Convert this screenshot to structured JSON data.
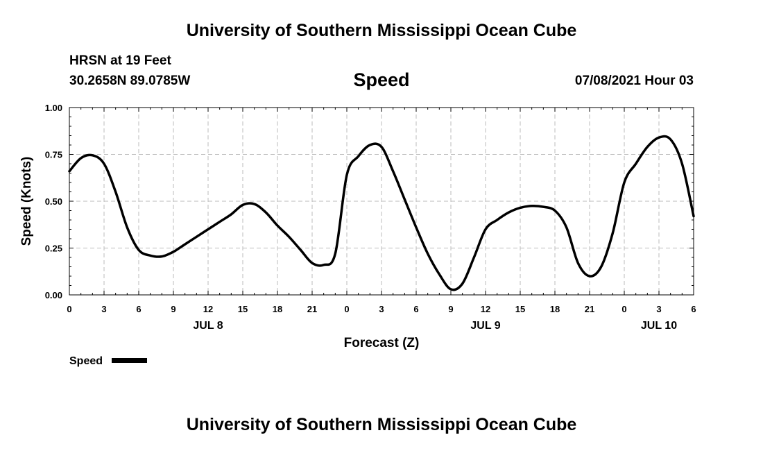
{
  "header": {
    "org_title": "University of Southern Mississippi Ocean Cube",
    "station": "HRSN at 19 Feet",
    "coords": "30.2658N  89.0785W",
    "datetime": "07/08/2021 Hour 03"
  },
  "footer": {
    "org_title": "University of Southern Mississippi Ocean Cube"
  },
  "colors": {
    "line": "#000000",
    "grid": "#bbbbbb",
    "background": "#ffffff"
  },
  "chart_data": {
    "type": "line",
    "title": "Speed",
    "xlabel": "Forecast (Z)",
    "ylabel": "Speed (Knots)",
    "ylim": [
      0,
      1
    ],
    "yticks": [
      "0.00",
      "0.25",
      "0.50",
      "0.75",
      "1.00"
    ],
    "xlim": [
      "2021-07-08T00:00Z",
      "2021-07-10T06:00Z"
    ],
    "xtick_labels": [
      "0",
      "3",
      "6",
      "9",
      "12",
      "15",
      "18",
      "21",
      "0",
      "3",
      "6",
      "9",
      "12",
      "15",
      "18",
      "21",
      "0",
      "3",
      "6"
    ],
    "date_labels": [
      {
        "label": "JUL 8",
        "at": "2021-07-08T12:00Z"
      },
      {
        "label": "JUL 9",
        "at": "2021-07-09T12:00Z"
      },
      {
        "label": "JUL 10",
        "at": "2021-07-10T03:00Z"
      }
    ],
    "grid": true,
    "legend": {
      "position": "bottom-left",
      "entries": [
        "Speed"
      ]
    },
    "series": [
      {
        "name": "Speed",
        "x": [
          "2021-07-08T00:00Z",
          "2021-07-08T01:00Z",
          "2021-07-08T02:00Z",
          "2021-07-08T03:00Z",
          "2021-07-08T04:00Z",
          "2021-07-08T05:00Z",
          "2021-07-08T06:00Z",
          "2021-07-08T07:00Z",
          "2021-07-08T08:00Z",
          "2021-07-08T09:00Z",
          "2021-07-08T10:00Z",
          "2021-07-08T11:00Z",
          "2021-07-08T12:00Z",
          "2021-07-08T13:00Z",
          "2021-07-08T14:00Z",
          "2021-07-08T15:00Z",
          "2021-07-08T16:00Z",
          "2021-07-08T17:00Z",
          "2021-07-08T18:00Z",
          "2021-07-08T19:00Z",
          "2021-07-08T20:00Z",
          "2021-07-08T21:00Z",
          "2021-07-08T22:00Z",
          "2021-07-08T23:00Z",
          "2021-07-09T00:00Z",
          "2021-07-09T01:00Z",
          "2021-07-09T02:00Z",
          "2021-07-09T03:00Z",
          "2021-07-09T04:00Z",
          "2021-07-09T05:00Z",
          "2021-07-09T06:00Z",
          "2021-07-09T07:00Z",
          "2021-07-09T08:00Z",
          "2021-07-09T09:00Z",
          "2021-07-09T10:00Z",
          "2021-07-09T11:00Z",
          "2021-07-09T12:00Z",
          "2021-07-09T13:00Z",
          "2021-07-09T14:00Z",
          "2021-07-09T15:00Z",
          "2021-07-09T16:00Z",
          "2021-07-09T17:00Z",
          "2021-07-09T18:00Z",
          "2021-07-09T19:00Z",
          "2021-07-09T20:00Z",
          "2021-07-09T21:00Z",
          "2021-07-09T22:00Z",
          "2021-07-09T23:00Z",
          "2021-07-10T00:00Z",
          "2021-07-10T01:00Z",
          "2021-07-10T02:00Z",
          "2021-07-10T03:00Z",
          "2021-07-10T04:00Z",
          "2021-07-10T05:00Z",
          "2021-07-10T06:00Z"
        ],
        "values": [
          0.66,
          0.73,
          0.745,
          0.7,
          0.55,
          0.36,
          0.24,
          0.21,
          0.205,
          0.23,
          0.27,
          0.31,
          0.35,
          0.39,
          0.43,
          0.48,
          0.485,
          0.44,
          0.37,
          0.31,
          0.24,
          0.17,
          0.16,
          0.22,
          0.64,
          0.74,
          0.8,
          0.79,
          0.66,
          0.51,
          0.36,
          0.22,
          0.11,
          0.03,
          0.06,
          0.2,
          0.35,
          0.4,
          0.44,
          0.465,
          0.475,
          0.47,
          0.45,
          0.36,
          0.17,
          0.1,
          0.15,
          0.33,
          0.6,
          0.7,
          0.79,
          0.84,
          0.83,
          0.7,
          0.42
        ]
      }
    ]
  }
}
